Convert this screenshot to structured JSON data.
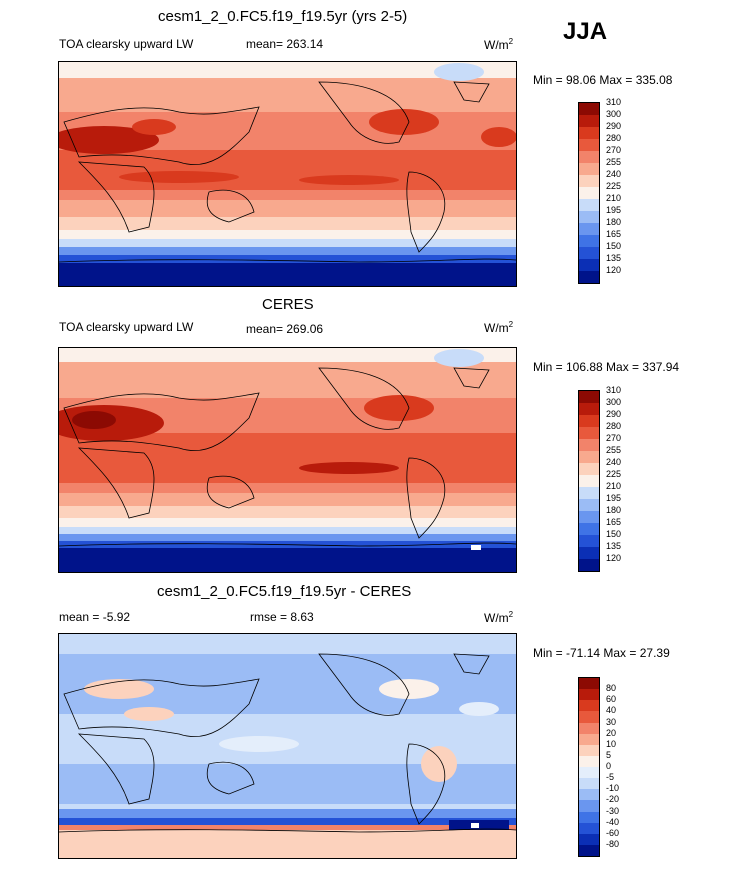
{
  "season": "JJA",
  "palette": {
    "abs": [
      "#00138a",
      "#0b2fb5",
      "#2452d6",
      "#3f73e6",
      "#6a96ef",
      "#9bbcf5",
      "#c8dcf9",
      "#fbf1ea",
      "#fcd2bd",
      "#f8a98e",
      "#f2836a",
      "#e8593c",
      "#d93a1e",
      "#b81b0b",
      "#8c0a03"
    ],
    "diff": [
      "#00138a",
      "#0b2fb5",
      "#2452d6",
      "#3f73e6",
      "#6a96ef",
      "#9bbcf5",
      "#c8dcf9",
      "#e4eefb",
      "#fbf1ea",
      "#fcd2bd",
      "#f8a98e",
      "#f2836a",
      "#e8593c",
      "#d93a1e",
      "#b81b0b",
      "#8c0a03"
    ]
  },
  "panels": [
    {
      "title": "cesm1_2_0.FC5.f19_f19.5yr (yrs 2-5)",
      "variable": "TOA clearsky upward LW",
      "stat": "mean= 263.14",
      "stat2": "",
      "units": "W/m",
      "units_sup": "2",
      "minmax": "Min =  98.06 Max = 335.08",
      "levels": [
        "120",
        "135",
        "150",
        "165",
        "180",
        "195",
        "210",
        "225",
        "240",
        "255",
        "270",
        "280",
        "290",
        "300",
        "310"
      ],
      "kind": "abs"
    },
    {
      "title": "CERES",
      "variable": "TOA clearsky upward LW",
      "stat": "mean= 269.06",
      "stat2": "",
      "units": "W/m",
      "units_sup": "2",
      "minmax": "Min = 106.88 Max = 337.94",
      "levels": [
        "120",
        "135",
        "150",
        "165",
        "180",
        "195",
        "210",
        "225",
        "240",
        "255",
        "270",
        "280",
        "290",
        "300",
        "310"
      ],
      "kind": "abs"
    },
    {
      "title": "cesm1_2_0.FC5.f19_f19.5yr - CERES",
      "variable": "mean =  -5.92",
      "stat": "rmse =   8.63",
      "stat2": "",
      "units": "W/m",
      "units_sup": "2",
      "minmax": "Min = -71.14 Max =  27.39",
      "levels": [
        "-80",
        "-60",
        "-40",
        "-30",
        "-20",
        "-10",
        "-5",
        "0",
        "5",
        "10",
        "20",
        "30",
        "40",
        "60",
        "80"
      ],
      "kind": "diff"
    }
  ]
}
